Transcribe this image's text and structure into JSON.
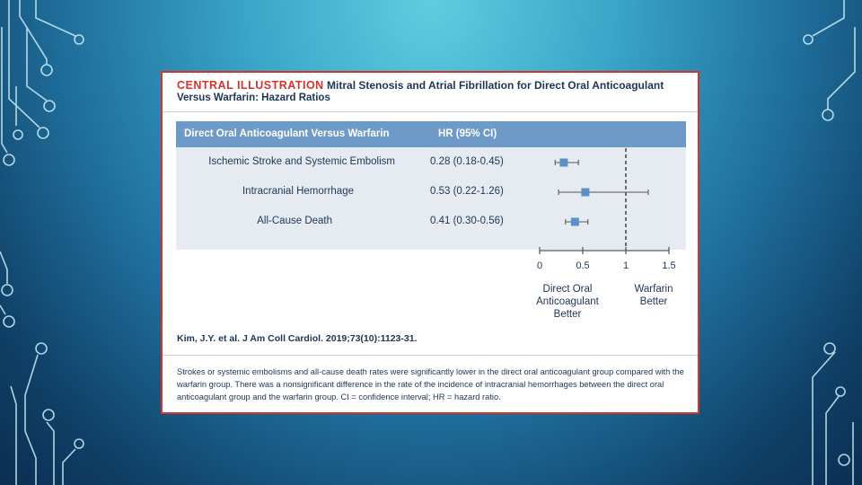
{
  "header": {
    "tag": "CENTRAL ILLUSTRATION",
    "title_part1": "Mitral Stenosis and Atrial Fibrillation for Direct Oral Anticoagulant",
    "title_part2": "Versus Warfarin: Hazard Ratios"
  },
  "table": {
    "col_comparison": "Direct Oral Anticoagulant Versus Warfarin",
    "col_hr": "HR (95% CI)"
  },
  "chart_data": {
    "type": "scatter",
    "subtype": "forest-plot",
    "rows": [
      {
        "label": "Ischemic Stroke and Systemic Embolism",
        "hr_text": "0.28 (0.18-0.45)",
        "hr": 0.28,
        "ci_low": 0.18,
        "ci_high": 0.45
      },
      {
        "label": "Intracranial Hemorrhage",
        "hr_text": "0.53 (0.22-1.26)",
        "hr": 0.53,
        "ci_low": 0.22,
        "ci_high": 1.26
      },
      {
        "label": "All-Cause Death",
        "hr_text": "0.41 (0.30-0.56)",
        "hr": 0.41,
        "ci_low": 0.3,
        "ci_high": 0.56
      }
    ],
    "xlim": [
      0,
      1.5
    ],
    "xticks": [
      0,
      0.5,
      1,
      1.5
    ],
    "xtick_labels": [
      "0",
      "0.5",
      "1",
      "1.5"
    ],
    "reference_line": 1,
    "left_label": "Direct Oral Anticoagulant Better",
    "right_label": "Warfarin Better",
    "marker_color": "#5b8fc7"
  },
  "citation": "Kim, J.Y. et al. J Am Coll Cardiol. 2019;73(10):1123-31.",
  "caption": "Strokes or systemic embolisms and all-cause death rates were significantly lower in the direct oral anticoagulant group compared with the warfarin group. There was a nonsignificant difference in the rate of the incidence of intracranial hemorrhages between the direct oral anticoagulant group and the warfarin group. CI = confidence interval; HR = hazard ratio."
}
